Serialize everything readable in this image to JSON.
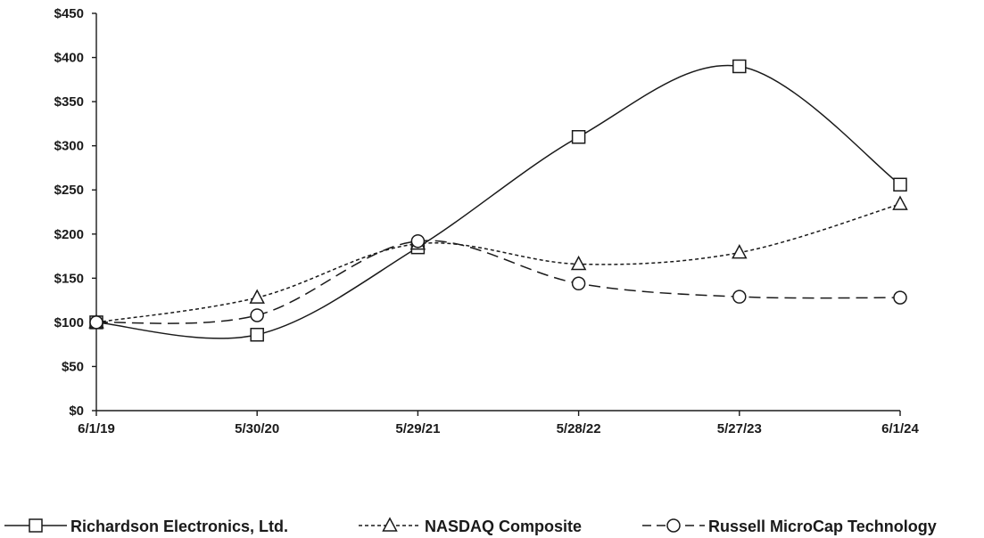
{
  "chart_data": {
    "type": "line",
    "categories": [
      "6/1/19",
      "5/30/20",
      "5/29/21",
      "5/28/22",
      "5/27/23",
      "6/1/24"
    ],
    "y_ticks": [
      "$0",
      "$50",
      "$100",
      "$150",
      "$200",
      "$250",
      "$300",
      "$350",
      "$400",
      "$450"
    ],
    "ylim": [
      0,
      450
    ],
    "grid": false,
    "legend_position": "bottom",
    "series": [
      {
        "name": "Richardson Electronics, Ltd.",
        "marker": "square",
        "line_style": "solid",
        "values": [
          100,
          86,
          185,
          310,
          390,
          256
        ]
      },
      {
        "name": "NASDAQ Composite",
        "marker": "triangle",
        "line_style": "dotted",
        "values": [
          100,
          128,
          189,
          166,
          179,
          234
        ]
      },
      {
        "name": "Russell MicroCap Technology",
        "marker": "circle",
        "line_style": "dashed",
        "values": [
          100,
          108,
          192,
          144,
          129,
          128
        ]
      }
    ]
  }
}
